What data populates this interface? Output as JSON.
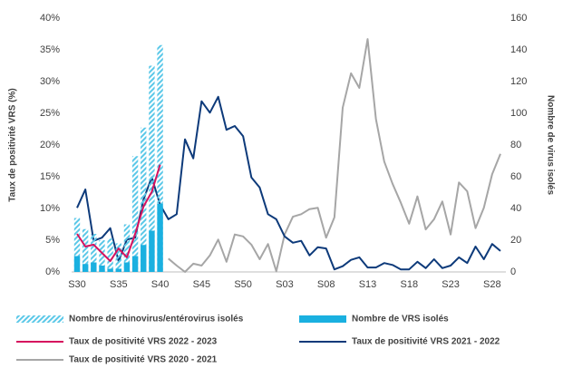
{
  "chart_data": {
    "type": "combo",
    "y_label": "Taux de positivité VRS (%)",
    "y2_label": "Nombre de virus isolés",
    "categories": [
      "S30",
      null,
      null,
      null,
      null,
      "S35",
      null,
      null,
      null,
      null,
      "S40",
      null,
      null,
      null,
      null,
      "S45",
      null,
      null,
      null,
      null,
      "S50",
      null,
      null,
      null,
      null,
      "S03",
      null,
      null,
      null,
      null,
      "S08",
      null,
      null,
      null,
      null,
      "S13",
      null,
      null,
      null,
      null,
      "S18",
      null,
      null,
      null,
      null,
      "S23",
      null,
      null,
      null,
      null,
      "S28",
      null
    ],
    "ylim": [
      0,
      40
    ],
    "yticks": [
      {
        "value": 0,
        "label": "0%"
      },
      {
        "value": 5,
        "label": "5%"
      },
      {
        "value": 10,
        "label": "10%"
      },
      {
        "value": 15,
        "label": "15%"
      },
      {
        "value": 20,
        "label": "20%"
      },
      {
        "value": 25,
        "label": "25%"
      },
      {
        "value": 30,
        "label": "30%"
      },
      {
        "value": 35,
        "label": "35%"
      },
      {
        "value": 40,
        "label": "40%"
      }
    ],
    "y2lim": [
      0,
      160
    ],
    "y2ticks": [
      0,
      20,
      40,
      60,
      80,
      100,
      120,
      140,
      160
    ],
    "series": [
      {
        "name": "Nombre de rhinovirus/entérovirus isolés",
        "type": "bar",
        "fill": "hatched",
        "axis": "y2",
        "color": "#5bc8e8",
        "values": [
          34,
          27,
          24,
          20,
          21,
          18,
          30,
          73,
          91,
          130,
          143,
          null,
          null,
          null,
          null,
          null,
          null,
          null,
          null,
          null,
          null,
          null,
          null,
          null,
          null,
          null,
          null,
          null,
          null,
          null,
          null,
          null,
          null,
          null,
          null,
          null,
          null,
          null,
          null,
          null,
          null,
          null,
          null,
          null,
          null,
          null,
          null,
          null,
          null,
          null,
          null,
          null
        ]
      },
      {
        "name": "Nombre de VRS isolés",
        "type": "bar",
        "fill": "solid",
        "axis": "y2",
        "color": "#1ab0e0",
        "values": [
          10,
          5,
          6,
          4,
          2,
          2,
          6,
          10,
          17,
          26,
          43,
          null,
          null,
          null,
          null,
          null,
          null,
          null,
          null,
          null,
          null,
          null,
          null,
          null,
          null,
          null,
          null,
          null,
          null,
          null,
          null,
          null,
          null,
          null,
          null,
          null,
          null,
          null,
          null,
          null,
          null,
          null,
          null,
          null,
          null,
          null,
          null,
          null,
          null,
          null,
          null,
          null
        ]
      },
      {
        "name": "Taux de positivité VRS 2022 - 2023",
        "type": "line",
        "axis": "y",
        "color": "#d6125e",
        "values": [
          6,
          4,
          4.3,
          3,
          1.7,
          3.7,
          2.3,
          6,
          10.3,
          12.6,
          16.9,
          null,
          null,
          null,
          null,
          null,
          null,
          null,
          null,
          null,
          null,
          null,
          null,
          null,
          null,
          null,
          null,
          null,
          null,
          null,
          null,
          null,
          null,
          null,
          null,
          null,
          null,
          null,
          null,
          null,
          null,
          null,
          null,
          null,
          null,
          null,
          null,
          null,
          null,
          null,
          null,
          null
        ]
      },
      {
        "name": "Taux de positivité VRS 2021 - 2022",
        "type": "line",
        "axis": "y",
        "color": "#0d3a7a",
        "values": [
          10.1,
          13,
          4.9,
          5.4,
          6.9,
          1.7,
          5.1,
          5.4,
          11.4,
          14.9,
          10.6,
          8.3,
          9.1,
          20.9,
          17.9,
          26.9,
          25.1,
          27.6,
          22.4,
          23,
          21.4,
          14.9,
          13.3,
          9.1,
          8.3,
          5.6,
          4.6,
          4.9,
          2.6,
          3.9,
          3.7,
          0.4,
          0.9,
          1.9,
          2.3,
          0.7,
          0.7,
          1.4,
          1.1,
          0.4,
          0.4,
          1.6,
          0.6,
          2,
          0.6,
          1,
          2.3,
          1.4,
          4,
          2,
          4.4,
          3.3
        ]
      },
      {
        "name": "Taux de positivité VRS 2020 - 2021",
        "type": "line",
        "axis": "y",
        "color": "#a6a6a6",
        "values": [
          null,
          null,
          null,
          null,
          null,
          null,
          null,
          null,
          null,
          null,
          null,
          2.1,
          1,
          0,
          1.3,
          1,
          2.6,
          5.1,
          1.6,
          5.9,
          5.6,
          4.3,
          2,
          4.4,
          0.1,
          5.9,
          8.7,
          9.1,
          9.9,
          10.1,
          5.4,
          8.6,
          25.9,
          31.3,
          29,
          36.7,
          24.1,
          17.4,
          13.9,
          10.9,
          7.6,
          11.9,
          6.7,
          8.3,
          11.1,
          5.9,
          14.1,
          12.7,
          6.9,
          10.1,
          15.4,
          18.6
        ]
      }
    ]
  }
}
